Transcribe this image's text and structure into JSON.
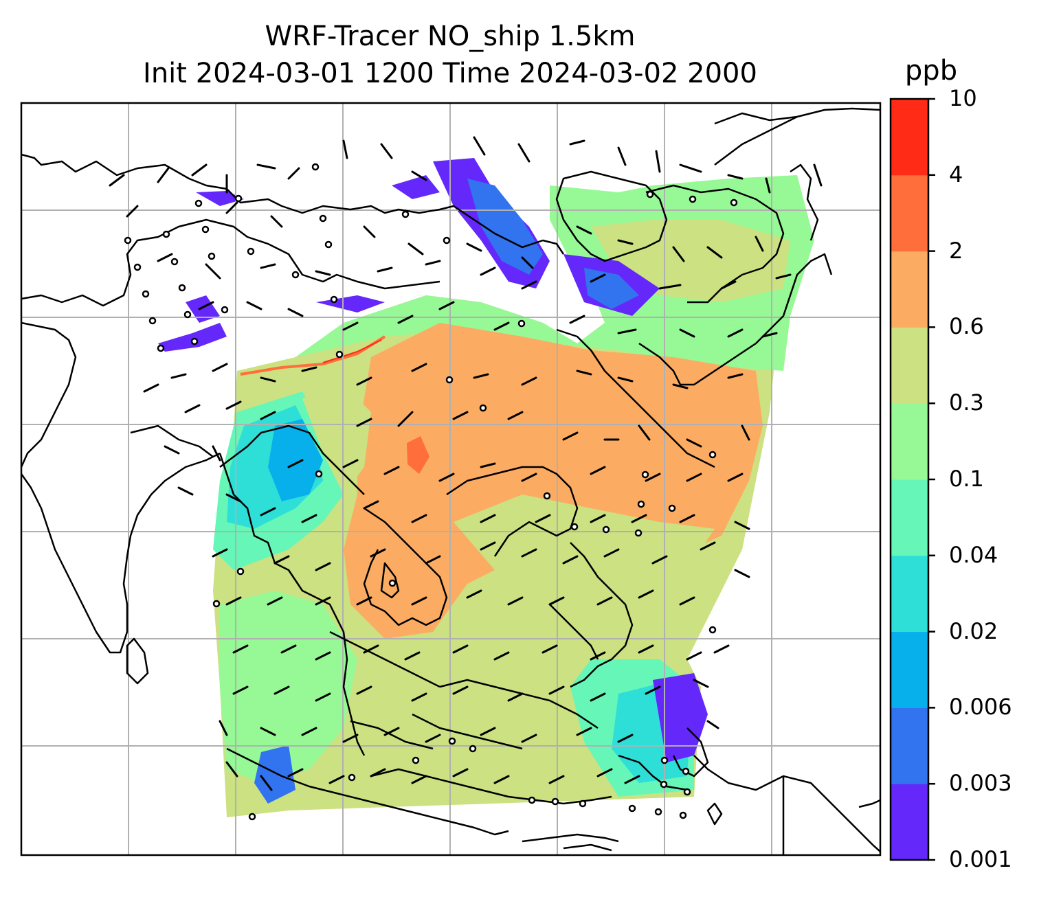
{
  "title": {
    "line1": "WRF-Tracer NO_ship 1.5km",
    "line2": "Init 2024-03-01 1200 Time 2024-03-02 2000"
  },
  "colorbar": {
    "unit": "ppb",
    "levels": [
      "0.001",
      "0.003",
      "0.006",
      "0.02",
      "0.04",
      "0.1",
      "0.3",
      "0.6",
      "2",
      "4",
      "10"
    ],
    "colors": [
      "#6428fa",
      "#3273f0",
      "#08b0eb",
      "#2edfd8",
      "#66f6b8",
      "#97f996",
      "#cbe182",
      "#fcac62",
      "#ff6e3b",
      "#ff2b17"
    ]
  },
  "map": {
    "background": "#ffffff",
    "grid_color": "#b0b0b0",
    "coastline_color": "#000000",
    "wind_barb_color": "#000000"
  }
}
